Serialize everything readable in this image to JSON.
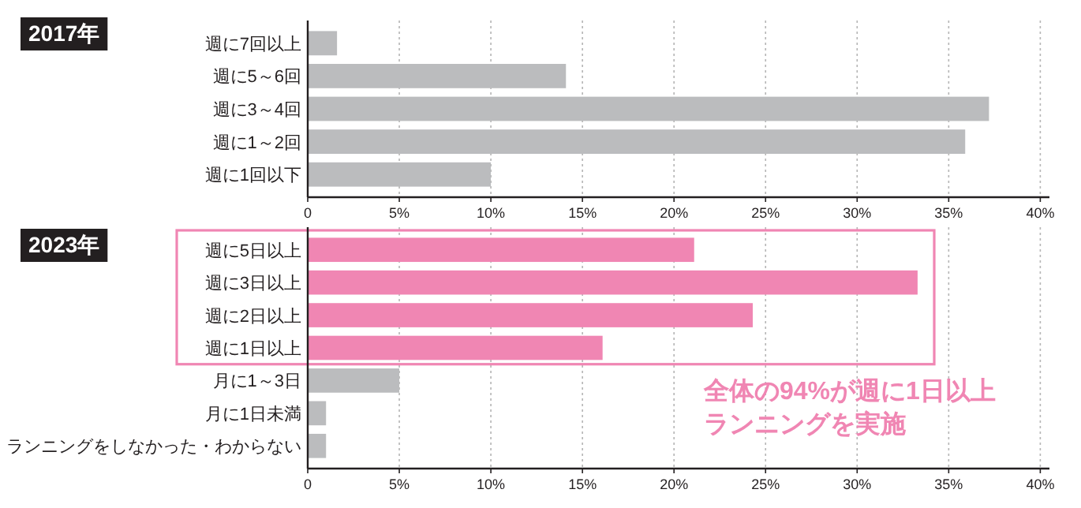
{
  "chart_data": [
    {
      "type": "bar",
      "orientation": "horizontal",
      "title": "2017年",
      "categories": [
        "週に7回以上",
        "週に5～6回",
        "週に3～4回",
        "週に1～2回",
        "週に1回以下"
      ],
      "values": [
        1.6,
        14.1,
        37.2,
        35.9,
        10.0
      ],
      "colors": [
        "#bbbcbe",
        "#bbbcbe",
        "#bbbcbe",
        "#bbbcbe",
        "#bbbcbe"
      ],
      "xlim": [
        0,
        40.5
      ],
      "xticks": [
        0,
        {
          "value": 5,
          "label": "5%"
        },
        {
          "value": 10,
          "label": "10%"
        },
        {
          "value": 15,
          "label": "15%"
        },
        {
          "value": 20,
          "label": "20%"
        },
        {
          "value": 25,
          "label": "25%"
        },
        {
          "value": 30,
          "label": "30%"
        },
        {
          "value": 35,
          "label": "35%"
        },
        {
          "value": 40,
          "label": "40%"
        }
      ],
      "grid": "x"
    },
    {
      "type": "bar",
      "orientation": "horizontal",
      "title": "2023年",
      "categories": [
        "週に5日以上",
        "週に3日以上",
        "週に2日以上",
        "週に1日以上",
        "月に1～3日",
        "月に1日未満",
        "ランニングをしなかった・わからない"
      ],
      "values": [
        21.1,
        33.3,
        24.3,
        16.1,
        5.0,
        1.0,
        1.0
      ],
      "colors": [
        "#f086b3",
        "#f086b3",
        "#f086b3",
        "#f086b3",
        "#bbbcbe",
        "#bbbcbe",
        "#bbbcbe"
      ],
      "xlim": [
        0,
        40.5
      ],
      "xticks": [
        0,
        {
          "value": 5,
          "label": "5%"
        },
        {
          "value": 10,
          "label": "10%"
        },
        {
          "value": 15,
          "label": "15%"
        },
        {
          "value": 20,
          "label": "20%"
        },
        {
          "value": 25,
          "label": "25%"
        },
        {
          "value": 30,
          "label": "30%"
        },
        {
          "value": 35,
          "label": "35%"
        },
        {
          "value": 40,
          "label": "40%"
        }
      ],
      "grid": "x",
      "annotations": [
        "全体の94%が週に1日以上",
        "ランニングを実施"
      ]
    }
  ]
}
